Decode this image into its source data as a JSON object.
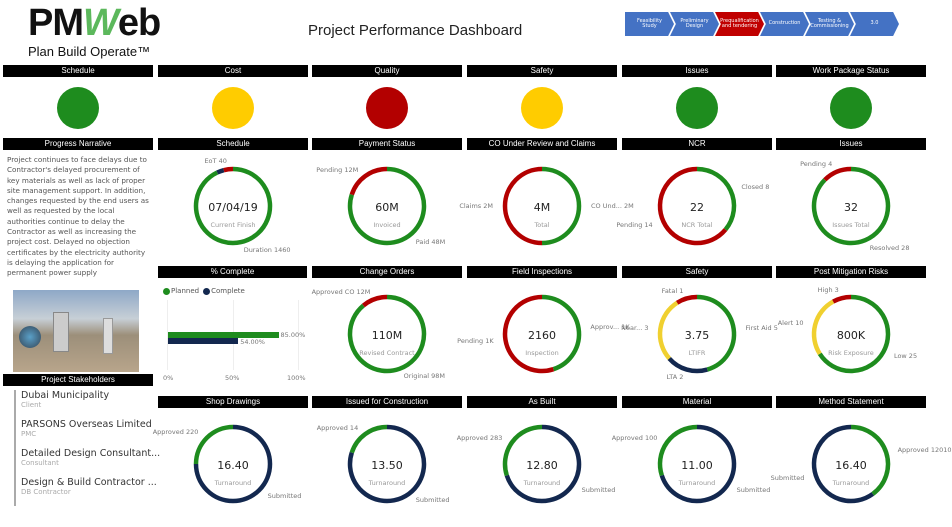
{
  "logo": {
    "text": "PMWeb",
    "tagline": "Plan Build Operate™"
  },
  "title": "Project Performance Dashboard",
  "phases": [
    {
      "label": "Feasibility Study",
      "active": false
    },
    {
      "label": "Preliminary Design",
      "active": false
    },
    {
      "label": "Prequalification and tendering",
      "active": true
    },
    {
      "label": "Construction",
      "active": false
    },
    {
      "label": "Testing & Commissioning",
      "active": false
    },
    {
      "label": "3.0",
      "active": false
    }
  ],
  "colors": {
    "green": "#1e8c1e",
    "red": "#b30000",
    "yellow": "#ffcc00",
    "navy": "#13284f",
    "phase": "#4472c4",
    "phase_active": "#c00000"
  },
  "status": [
    {
      "label": "Schedule",
      "color": "#1e8c1e"
    },
    {
      "label": "Cost",
      "color": "#ffcc00"
    },
    {
      "label": "Quality",
      "color": "#b30000"
    },
    {
      "label": "Safety",
      "color": "#ffcc00"
    },
    {
      "label": "Issues",
      "color": "#1e8c1e"
    },
    {
      "label": "Work Package Status",
      "color": "#1e8c1e"
    }
  ],
  "narrative": {
    "title": "Progress Narrative",
    "text": "Project continues to face delays due to Contractor's delayed procurement of key materials as well as lack of proper site management support. In addition, changes requested by the end users as well as requested by the local authorities continue to delay the Contractor as well as increasing the project cost. Delayed no objection certificates by the electricity authority is delaying the application for permanent power supply"
  },
  "stakeholders": {
    "title": "Project Stakeholders",
    "items": [
      {
        "name": "Dubai Municipality",
        "role": "Client"
      },
      {
        "name": "PARSONS Overseas Limited",
        "role": "PMC"
      },
      {
        "name": "Detailed Design Consultant...",
        "role": "Consultant"
      },
      {
        "name": "Design & Build Contractor ...",
        "role": "DB Contractor"
      }
    ]
  },
  "percent_complete": {
    "title": "% Complete",
    "legend": [
      "Planned",
      "Complete"
    ],
    "planned": 85,
    "complete": 54,
    "planned_label": "85.00%",
    "complete_label": "54.00%",
    "ticks": [
      "0%",
      "50%",
      "100%"
    ]
  },
  "donuts": [
    {
      "title": "Schedule",
      "value": "07/04/19",
      "sub": "Current Finish",
      "segments": [
        {
          "label": "Duration 1460",
          "share": 0.93,
          "color": "#1e8c1e"
        },
        {
          "label": "",
          "share": 0.03,
          "color": "#13284f"
        },
        {
          "label": "EoT 40",
          "share": 0.04,
          "color": "#b30000"
        }
      ]
    },
    {
      "title": "Payment Status",
      "value": "60M",
      "sub": "Invoiced",
      "segments": [
        {
          "label": "Paid 48M",
          "share": 0.8,
          "color": "#1e8c1e"
        },
        {
          "label": "Pending 12M",
          "share": 0.2,
          "color": "#b30000"
        }
      ]
    },
    {
      "title": "CO Under Review and Claims",
      "value": "4M",
      "sub": "Total",
      "segments": [
        {
          "label": "CO Und... 2M",
          "share": 0.5,
          "color": "#1e8c1e"
        },
        {
          "label": "Claims 2M",
          "share": 0.5,
          "color": "#b30000"
        }
      ]
    },
    {
      "title": "NCR",
      "value": "22",
      "sub": "NCR Total",
      "segments": [
        {
          "label": "Closed 8",
          "share": 0.36,
          "color": "#1e8c1e"
        },
        {
          "label": "Pending 14",
          "share": 0.64,
          "color": "#b30000"
        }
      ]
    },
    {
      "title": "Issues",
      "value": "32",
      "sub": "Issues Total",
      "segments": [
        {
          "label": "Resolved 28",
          "share": 0.875,
          "color": "#1e8c1e"
        },
        {
          "label": "Pending 4",
          "share": 0.125,
          "color": "#b30000"
        }
      ]
    },
    {
      "title": "Change Orders",
      "value": "110M",
      "sub": "Revised Contract",
      "segments": [
        {
          "label": "Original 98M",
          "share": 0.89,
          "color": "#1e8c1e"
        },
        {
          "label": "Approved CO 12M",
          "share": 0.11,
          "color": "#b30000"
        }
      ]
    },
    {
      "title": "Field Inspections",
      "value": "2160",
      "sub": "Inspection",
      "segments": [
        {
          "label": "Approv... 1K",
          "share": 0.45,
          "color": "#1e8c1e"
        },
        {
          "label": "Pending 1K",
          "share": 0.55,
          "color": "#b30000"
        }
      ]
    },
    {
      "title": "Safety",
      "value": "3.75",
      "sub": "LTIFR",
      "segments": [
        {
          "label": "First Aid 5",
          "share": 0.455,
          "color": "#1e8c1e"
        },
        {
          "label": "LTA 2",
          "share": 0.18,
          "color": "#13284f"
        },
        {
          "label": "Near... 3",
          "share": 0.275,
          "color": "#f0d030"
        },
        {
          "label": "Fatal 1",
          "share": 0.09,
          "color": "#b30000"
        }
      ]
    },
    {
      "title": "Post Mitigation Risks",
      "value": "800K",
      "sub": "Risk Exposure",
      "segments": [
        {
          "label": "Low 25",
          "share": 0.66,
          "color": "#1e8c1e"
        },
        {
          "label": "Alert 10",
          "share": 0.26,
          "color": "#f0d030"
        },
        {
          "label": "High 3",
          "share": 0.08,
          "color": "#b30000"
        }
      ]
    },
    {
      "title": "Shop Drawings",
      "value": "16.40",
      "sub": "Turnaround",
      "segments": [
        {
          "label": "Submitted",
          "share": 0.75,
          "color": "#13284f"
        },
        {
          "label": "Approved 220",
          "share": 0.25,
          "color": "#1e8c1e"
        }
      ]
    },
    {
      "title": "Issued for Construction",
      "value": "13.50",
      "sub": "Turnaround",
      "segments": [
        {
          "label": "Submitted",
          "share": 0.8,
          "color": "#13284f"
        },
        {
          "label": "Approved 14",
          "share": 0.2,
          "color": "#1e8c1e"
        }
      ]
    },
    {
      "title": "As Built",
      "value": "12.80",
      "sub": "Turnaround",
      "segments": [
        {
          "label": "Submitted",
          "share": 0.7,
          "color": "#13284f"
        },
        {
          "label": "Approved 283",
          "share": 0.3,
          "color": "#1e8c1e"
        }
      ]
    },
    {
      "title": "Material",
      "value": "11.00",
      "sub": "Turnaround",
      "segments": [
        {
          "label": "Submitted",
          "share": 0.7,
          "color": "#13284f"
        },
        {
          "label": "Approved 100",
          "share": 0.3,
          "color": "#1e8c1e"
        }
      ]
    },
    {
      "title": "Method Statement",
      "value": "16.40",
      "sub": "Turnaround",
      "segments": [
        {
          "label": "Approved 12010",
          "share": 0.4,
          "color": "#1e8c1e"
        },
        {
          "label": "Submitted",
          "share": 0.6,
          "color": "#13284f"
        }
      ]
    }
  ]
}
